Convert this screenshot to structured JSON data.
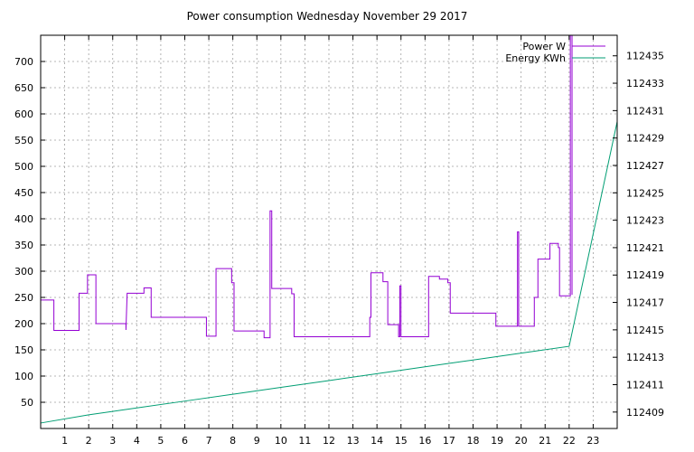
{
  "chart_data": {
    "type": "line",
    "title": "Power consumption Wednesday November 29 2017",
    "xlabel": "",
    "ylabel": "",
    "y2label": "",
    "grid": true,
    "legend_position": "top-right",
    "xlim": [
      0,
      24
    ],
    "ylim": [
      0,
      750
    ],
    "y2lim": [
      112407.8,
      112436.5
    ],
    "x_ticks": [
      1,
      2,
      3,
      4,
      5,
      6,
      7,
      8,
      9,
      10,
      11,
      12,
      13,
      14,
      15,
      16,
      17,
      18,
      19,
      20,
      21,
      22,
      23
    ],
    "y_ticks": [
      50,
      100,
      150,
      200,
      250,
      300,
      350,
      400,
      450,
      500,
      550,
      600,
      650,
      700
    ],
    "y2_ticks": [
      112409,
      112411,
      112413,
      112415,
      112417,
      112419,
      112421,
      112423,
      112425,
      112427,
      112429,
      112431,
      112433,
      112435
    ],
    "colors": {
      "power": "#9400d3",
      "energy": "#009e73",
      "grid": "#a0a0a0",
      "axes": "#000000"
    },
    "series": [
      {
        "name": "Power W",
        "axis": "left",
        "step": true,
        "points": [
          [
            0.0,
            245
          ],
          [
            0.55,
            245
          ],
          [
            0.55,
            187
          ],
          [
            1.6,
            187
          ],
          [
            1.6,
            258
          ],
          [
            1.95,
            258
          ],
          [
            1.95,
            293
          ],
          [
            2.3,
            293
          ],
          [
            2.3,
            200
          ],
          [
            3.55,
            200
          ],
          [
            3.55,
            188
          ],
          [
            3.6,
            258
          ],
          [
            4.3,
            258
          ],
          [
            4.3,
            268
          ],
          [
            4.6,
            268
          ],
          [
            4.6,
            212
          ],
          [
            6.9,
            212
          ],
          [
            6.9,
            176
          ],
          [
            7.3,
            176
          ],
          [
            7.3,
            305
          ],
          [
            7.95,
            305
          ],
          [
            7.95,
            278
          ],
          [
            8.05,
            278
          ],
          [
            8.05,
            186
          ],
          [
            9.3,
            186
          ],
          [
            9.3,
            173
          ],
          [
            9.55,
            173
          ],
          [
            9.55,
            415
          ],
          [
            9.62,
            415
          ],
          [
            9.62,
            267
          ],
          [
            10.45,
            267
          ],
          [
            10.45,
            257
          ],
          [
            10.55,
            257
          ],
          [
            10.55,
            175
          ],
          [
            13.7,
            175
          ],
          [
            13.7,
            212
          ],
          [
            13.75,
            212
          ],
          [
            13.75,
            297
          ],
          [
            14.25,
            297
          ],
          [
            14.25,
            280
          ],
          [
            14.45,
            280
          ],
          [
            14.45,
            198
          ],
          [
            14.9,
            198
          ],
          [
            14.9,
            175
          ],
          [
            14.95,
            175
          ],
          [
            14.95,
            272
          ],
          [
            15.0,
            272
          ],
          [
            15.0,
            175
          ],
          [
            16.15,
            175
          ],
          [
            16.15,
            290
          ],
          [
            16.6,
            290
          ],
          [
            16.6,
            285
          ],
          [
            16.95,
            285
          ],
          [
            16.95,
            278
          ],
          [
            17.05,
            278
          ],
          [
            17.05,
            220
          ],
          [
            18.95,
            220
          ],
          [
            18.95,
            195
          ],
          [
            19.85,
            195
          ],
          [
            19.85,
            375
          ],
          [
            19.9,
            375
          ],
          [
            19.9,
            195
          ],
          [
            20.55,
            195
          ],
          [
            20.55,
            250
          ],
          [
            20.7,
            250
          ],
          [
            20.7,
            323
          ],
          [
            21.2,
            323
          ],
          [
            21.2,
            353
          ],
          [
            21.55,
            353
          ],
          [
            21.55,
            345
          ],
          [
            21.6,
            345
          ],
          [
            21.6,
            253
          ],
          [
            22.05,
            253
          ],
          [
            22.05,
            750
          ],
          [
            22.12,
            750
          ],
          [
            22.12,
            255
          ]
        ]
      },
      {
        "name": "Energy KWh",
        "axis": "right",
        "step": false,
        "points": [
          [
            0.0,
            112408.2
          ],
          [
            2.0,
            112408.8
          ],
          [
            4.0,
            112409.3
          ],
          [
            6.0,
            112409.8
          ],
          [
            8.0,
            112410.3
          ],
          [
            10.0,
            112410.8
          ],
          [
            12.0,
            112411.3
          ],
          [
            14.0,
            112411.8
          ],
          [
            16.0,
            112412.3
          ],
          [
            18.0,
            112412.8
          ],
          [
            20.0,
            112413.3
          ],
          [
            22.0,
            112413.8
          ],
          [
            24.0,
            112430.2
          ]
        ]
      }
    ]
  }
}
